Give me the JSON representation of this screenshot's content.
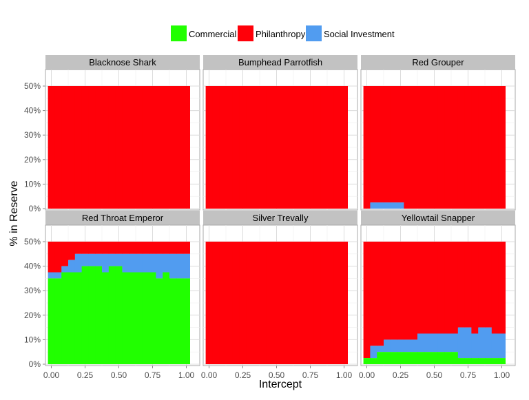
{
  "chart_data": {
    "type": "area",
    "xlabel": "Intercept",
    "ylabel": "% in Reserve",
    "xlim": [
      0,
      1
    ],
    "ylim": [
      0,
      0.5
    ],
    "x_ticks": [
      0,
      0.25,
      0.5,
      0.75,
      1
    ],
    "x_tick_labels": [
      "0.00",
      "0.25",
      "0.50",
      "0.75",
      "1.00"
    ],
    "y_ticks": [
      0,
      0.1,
      0.2,
      0.3,
      0.4,
      0.5
    ],
    "y_tick_labels": [
      "0%",
      "10%",
      "20%",
      "30%",
      "40%",
      "50%"
    ],
    "grid": true,
    "legend_position": "top",
    "legend": [
      {
        "key": "commercial",
        "label": "Commercial",
        "color": "#21ff00"
      },
      {
        "key": "philanthropy",
        "label": "Philanthropy",
        "color": "#ff0009"
      },
      {
        "key": "social",
        "label": "Social Investment",
        "color": "#519cf0"
      }
    ],
    "x": [
      0.0,
      0.05,
      0.1,
      0.15,
      0.2,
      0.25,
      0.3,
      0.35,
      0.4,
      0.45,
      0.5,
      0.55,
      0.6,
      0.65,
      0.7,
      0.75,
      0.8,
      0.85,
      0.9,
      0.95,
      1.0
    ],
    "panels": [
      {
        "title": "Blacknose Shark",
        "commercial": [
          0,
          0,
          0,
          0,
          0,
          0,
          0,
          0,
          0,
          0,
          0,
          0,
          0,
          0,
          0,
          0,
          0,
          0,
          0,
          0,
          0
        ],
        "social": [
          0,
          0,
          0,
          0,
          0,
          0,
          0,
          0,
          0,
          0,
          0,
          0,
          0,
          0,
          0,
          0,
          0,
          0,
          0,
          0,
          0
        ],
        "total": [
          0.5,
          0.5,
          0.5,
          0.5,
          0.5,
          0.5,
          0.5,
          0.5,
          0.5,
          0.5,
          0.5,
          0.5,
          0.5,
          0.5,
          0.5,
          0.5,
          0.5,
          0.5,
          0.5,
          0.5,
          0.5
        ]
      },
      {
        "title": "Bumphead Parrotfish",
        "commercial": [
          0,
          0,
          0,
          0,
          0,
          0,
          0,
          0,
          0,
          0,
          0,
          0,
          0,
          0,
          0,
          0,
          0,
          0,
          0,
          0,
          0
        ],
        "social": [
          0,
          0,
          0,
          0,
          0,
          0,
          0,
          0,
          0,
          0,
          0,
          0,
          0,
          0,
          0,
          0,
          0,
          0,
          0,
          0,
          0
        ],
        "total": [
          0.5,
          0.5,
          0.5,
          0.5,
          0.5,
          0.5,
          0.5,
          0.5,
          0.5,
          0.5,
          0.5,
          0.5,
          0.5,
          0.5,
          0.5,
          0.5,
          0.5,
          0.5,
          0.5,
          0.5,
          0.5
        ]
      },
      {
        "title": "Red Grouper",
        "commercial": [
          0,
          0,
          0,
          0,
          0,
          0,
          0,
          0,
          0,
          0,
          0,
          0,
          0,
          0,
          0,
          0,
          0,
          0,
          0,
          0,
          0
        ],
        "social": [
          0,
          0.025,
          0.025,
          0.025,
          0.025,
          0.025,
          0,
          0,
          0,
          0,
          0,
          0,
          0,
          0,
          0,
          0,
          0,
          0,
          0,
          0,
          0
        ],
        "total": [
          0.5,
          0.5,
          0.5,
          0.5,
          0.5,
          0.5,
          0.5,
          0.5,
          0.5,
          0.5,
          0.5,
          0.5,
          0.5,
          0.5,
          0.5,
          0.5,
          0.5,
          0.5,
          0.5,
          0.5,
          0.5
        ]
      },
      {
        "title": "Red Throat Emperor",
        "commercial": [
          0.35,
          0.35,
          0.375,
          0.375,
          0.375,
          0.4,
          0.4,
          0.4,
          0.375,
          0.4,
          0.4,
          0.375,
          0.375,
          0.375,
          0.375,
          0.375,
          0.35,
          0.375,
          0.35,
          0.35,
          0.35
        ],
        "social": [
          0.025,
          0.025,
          0.025,
          0.05,
          0.075,
          0.05,
          0.05,
          0.05,
          0.075,
          0.05,
          0.05,
          0.075,
          0.075,
          0.075,
          0.075,
          0.075,
          0.1,
          0.075,
          0.1,
          0.1,
          0.1
        ],
        "total": [
          0.5,
          0.5,
          0.5,
          0.5,
          0.5,
          0.5,
          0.5,
          0.5,
          0.5,
          0.5,
          0.5,
          0.5,
          0.5,
          0.5,
          0.5,
          0.5,
          0.5,
          0.5,
          0.5,
          0.5,
          0.5
        ]
      },
      {
        "title": "Silver Trevally",
        "commercial": [
          0,
          0,
          0,
          0,
          0,
          0,
          0,
          0,
          0,
          0,
          0,
          0,
          0,
          0,
          0,
          0,
          0,
          0,
          0,
          0,
          0
        ],
        "social": [
          0,
          0,
          0,
          0,
          0,
          0,
          0,
          0,
          0,
          0,
          0,
          0,
          0,
          0,
          0,
          0,
          0,
          0,
          0,
          0,
          0
        ],
        "total": [
          0.5,
          0.5,
          0.5,
          0.5,
          0.5,
          0.5,
          0.5,
          0.5,
          0.5,
          0.5,
          0.5,
          0.5,
          0.5,
          0.5,
          0.5,
          0.5,
          0.5,
          0.5,
          0.5,
          0.5,
          0.5
        ]
      },
      {
        "title": "Yellowtail Snapper",
        "commercial": [
          0.025,
          0.025,
          0.05,
          0.05,
          0.05,
          0.05,
          0.05,
          0.05,
          0.05,
          0.05,
          0.05,
          0.05,
          0.05,
          0.05,
          0.025,
          0.025,
          0.025,
          0.025,
          0.025,
          0.025,
          0.025
        ],
        "social": [
          0,
          0.05,
          0.025,
          0.05,
          0.05,
          0.05,
          0.05,
          0.05,
          0.075,
          0.075,
          0.075,
          0.075,
          0.075,
          0.075,
          0.125,
          0.125,
          0.1,
          0.125,
          0.125,
          0.1,
          0.1
        ],
        "total": [
          0.5,
          0.5,
          0.5,
          0.5,
          0.5,
          0.5,
          0.5,
          0.5,
          0.5,
          0.5,
          0.5,
          0.5,
          0.5,
          0.5,
          0.5,
          0.5,
          0.5,
          0.5,
          0.5,
          0.5,
          0.5
        ]
      }
    ]
  }
}
